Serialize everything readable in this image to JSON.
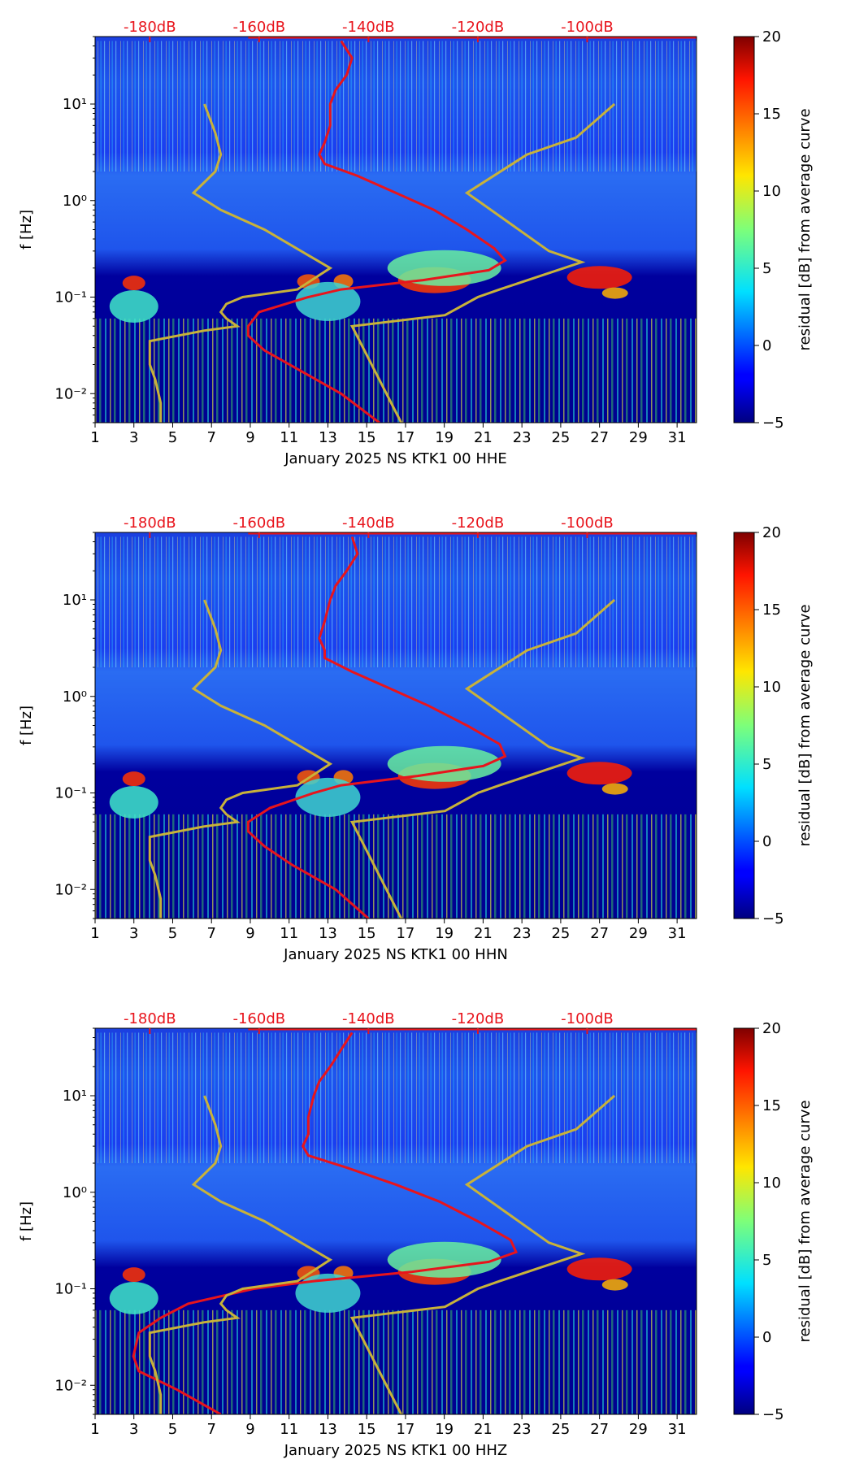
{
  "colors": {
    "psd_curve": "#e8141c",
    "nlnm_nhnm": "#c8b23a",
    "db_axis": "#e8141c",
    "axis": "#000000"
  },
  "colorbar_label": "residual [dB] from average curve",
  "colorbar_ticks": [
    "−5",
    "0",
    "5",
    "10",
    "15",
    "20"
  ],
  "y_label": "f [Hz]",
  "chart_data": [
    {
      "type": "heatmap",
      "title": "",
      "xlabel": "January 2025 NS KTK1 00 HHE",
      "ylabel": "f [Hz]",
      "x_ticks": [
        "1",
        "3",
        "5",
        "7",
        "9",
        "11",
        "13",
        "15",
        "17",
        "19",
        "21",
        "23",
        "25",
        "27",
        "29",
        "31"
      ],
      "x_range": [
        1,
        32
      ],
      "y_ticks": [
        "10⁻²",
        "10⁻¹",
        "10⁰",
        "10¹"
      ],
      "y_range_hz": [
        0.005,
        50
      ],
      "db_ticks": [
        "-180dB",
        "-160dB",
        "-140dB",
        "-120dB",
        "-100dB"
      ],
      "db_range": [
        -190,
        -80
      ],
      "colorbar_range": [
        -5,
        20
      ],
      "series": [
        {
          "name": "average PSD curve (red)",
          "points": [
            [
              -145,
              45
            ],
            [
              -143,
              30
            ],
            [
              -144,
              20
            ],
            [
              -146,
              14
            ],
            [
              -147,
              10
            ],
            [
              -147,
              6
            ],
            [
              -148,
              4
            ],
            [
              -149,
              3
            ],
            [
              -148,
              2.4
            ],
            [
              -142,
              1.8
            ],
            [
              -135,
              1.2
            ],
            [
              -128,
              0.8
            ],
            [
              -122,
              0.5
            ],
            [
              -117,
              0.32
            ],
            [
              -115,
              0.24
            ],
            [
              -118,
              0.19
            ],
            [
              -130,
              0.15
            ],
            [
              -145,
              0.12
            ],
            [
              -151,
              0.1
            ],
            [
              -160,
              0.07
            ],
            [
              -162,
              0.05
            ],
            [
              -162,
              0.04
            ],
            [
              -159,
              0.028
            ],
            [
              -153,
              0.018
            ],
            [
              -145,
              0.01
            ],
            [
              -138,
              0.005
            ]
          ]
        },
        {
          "name": "noise model curves (yellow)",
          "points": [
            [
              -178,
              0.005
            ],
            [
              -178,
              0.008
            ],
            [
              -179,
              0.014
            ],
            [
              -180,
              0.02
            ],
            [
              -180,
              0.035
            ],
            [
              -170,
              0.045
            ],
            [
              -164,
              0.05
            ],
            [
              -166,
              0.06
            ],
            [
              -167,
              0.07
            ],
            [
              -166,
              0.085
            ],
            [
              -163,
              0.1
            ],
            [
              -153,
              0.12
            ],
            [
              -147,
              0.2
            ],
            [
              -159,
              0.5
            ],
            [
              -167,
              0.8
            ],
            [
              -172,
              1.2
            ],
            [
              -168,
              2
            ],
            [
              -167,
              3
            ],
            [
              -168,
              5
            ],
            [
              -170,
              10
            ]
          ]
        },
        {
          "name": "noise model curves (yellow, high)",
          "points": [
            [
              -134,
              0.005
            ],
            [
              -143,
              0.05
            ],
            [
              -126,
              0.065
            ],
            [
              -120,
              0.1
            ],
            [
              -116,
              0.12
            ],
            [
              -101,
              0.23
            ],
            [
              -107,
              0.3
            ],
            [
              -122,
              1.2
            ],
            [
              -111,
              3
            ],
            [
              -102,
              4.5
            ],
            [
              -95,
              10
            ]
          ]
        }
      ]
    },
    {
      "type": "heatmap",
      "title": "",
      "xlabel": "January 2025 NS KTK1 00 HHN",
      "ylabel": "f [Hz]",
      "x_ticks": [
        "1",
        "3",
        "5",
        "7",
        "9",
        "11",
        "13",
        "15",
        "17",
        "19",
        "21",
        "23",
        "25",
        "27",
        "29",
        "31"
      ],
      "x_range": [
        1,
        32
      ],
      "y_ticks": [
        "10⁻²",
        "10⁻¹",
        "10⁰",
        "10¹"
      ],
      "y_range_hz": [
        0.005,
        50
      ],
      "db_ticks": [
        "-180dB",
        "-160dB",
        "-140dB",
        "-120dB",
        "-100dB"
      ],
      "db_range": [
        -190,
        -80
      ],
      "colorbar_range": [
        -5,
        20
      ],
      "series": [
        {
          "name": "average PSD curve (red)",
          "points": [
            [
              -143,
              45
            ],
            [
              -142,
              30
            ],
            [
              -144,
              20
            ],
            [
              -146,
              14
            ],
            [
              -147,
              10
            ],
            [
              -148,
              6
            ],
            [
              -149,
              4
            ],
            [
              -148,
              3
            ],
            [
              -148,
              2.5
            ],
            [
              -143,
              1.8
            ],
            [
              -136,
              1.2
            ],
            [
              -129,
              0.8
            ],
            [
              -122,
              0.5
            ],
            [
              -116,
              0.32
            ],
            [
              -115,
              0.24
            ],
            [
              -119,
              0.19
            ],
            [
              -131,
              0.15
            ],
            [
              -145,
              0.12
            ],
            [
              -150,
              0.1
            ],
            [
              -158,
              0.07
            ],
            [
              -162,
              0.05
            ],
            [
              -162,
              0.04
            ],
            [
              -159,
              0.028
            ],
            [
              -154,
              0.018
            ],
            [
              -146,
              0.01
            ],
            [
              -140,
              0.005
            ]
          ]
        },
        {
          "name": "noise model curves (yellow)",
          "points": [
            [
              -178,
              0.005
            ],
            [
              -178,
              0.008
            ],
            [
              -179,
              0.014
            ],
            [
              -180,
              0.02
            ],
            [
              -180,
              0.035
            ],
            [
              -170,
              0.045
            ],
            [
              -164,
              0.05
            ],
            [
              -166,
              0.06
            ],
            [
              -167,
              0.07
            ],
            [
              -166,
              0.085
            ],
            [
              -163,
              0.1
            ],
            [
              -153,
              0.12
            ],
            [
              -147,
              0.2
            ],
            [
              -159,
              0.5
            ],
            [
              -167,
              0.8
            ],
            [
              -172,
              1.2
            ],
            [
              -168,
              2
            ],
            [
              -167,
              3
            ],
            [
              -168,
              5
            ],
            [
              -170,
              10
            ]
          ]
        },
        {
          "name": "noise model curves (yellow, high)",
          "points": [
            [
              -134,
              0.005
            ],
            [
              -143,
              0.05
            ],
            [
              -126,
              0.065
            ],
            [
              -120,
              0.1
            ],
            [
              -116,
              0.12
            ],
            [
              -101,
              0.23
            ],
            [
              -107,
              0.3
            ],
            [
              -122,
              1.2
            ],
            [
              -111,
              3
            ],
            [
              -102,
              4.5
            ],
            [
              -95,
              10
            ]
          ]
        }
      ]
    },
    {
      "type": "heatmap",
      "title": "",
      "xlabel": "January 2025 NS KTK1 00 HHZ",
      "ylabel": "f [Hz]",
      "x_ticks": [
        "1",
        "3",
        "5",
        "7",
        "9",
        "11",
        "13",
        "15",
        "17",
        "19",
        "21",
        "23",
        "25",
        "27",
        "29",
        "31"
      ],
      "x_range": [
        1,
        32
      ],
      "y_ticks": [
        "10⁻²",
        "10⁻¹",
        "10⁰",
        "10¹"
      ],
      "y_range_hz": [
        0.005,
        50
      ],
      "db_ticks": [
        "-180dB",
        "-160dB",
        "-140dB",
        "-120dB",
        "-100dB"
      ],
      "db_range": [
        -190,
        -80
      ],
      "colorbar_range": [
        -5,
        20
      ],
      "series": [
        {
          "name": "average PSD curve (red)",
          "points": [
            [
              -143,
              45
            ],
            [
              -145,
              30
            ],
            [
              -147,
              20
            ],
            [
              -149,
              14
            ],
            [
              -150,
              10
            ],
            [
              -151,
              6
            ],
            [
              -151,
              4
            ],
            [
              -152,
              3
            ],
            [
              -151,
              2.4
            ],
            [
              -144,
              1.8
            ],
            [
              -135,
              1.2
            ],
            [
              -127,
              0.8
            ],
            [
              -120,
              0.5
            ],
            [
              -114,
              0.32
            ],
            [
              -113,
              0.24
            ],
            [
              -118,
              0.19
            ],
            [
              -132,
              0.15
            ],
            [
              -150,
              0.12
            ],
            [
              -161,
              0.1
            ],
            [
              -173,
              0.07
            ],
            [
              -178,
              0.05
            ],
            [
              -182,
              0.035
            ],
            [
              -183,
              0.02
            ],
            [
              -182,
              0.014
            ],
            [
              -175,
              0.009
            ],
            [
              -167,
              0.005
            ]
          ]
        },
        {
          "name": "noise model curves (yellow)",
          "points": [
            [
              -178,
              0.005
            ],
            [
              -178,
              0.008
            ],
            [
              -179,
              0.014
            ],
            [
              -180,
              0.02
            ],
            [
              -180,
              0.035
            ],
            [
              -170,
              0.045
            ],
            [
              -164,
              0.05
            ],
            [
              -166,
              0.06
            ],
            [
              -167,
              0.07
            ],
            [
              -166,
              0.085
            ],
            [
              -163,
              0.1
            ],
            [
              -153,
              0.12
            ],
            [
              -147,
              0.2
            ],
            [
              -159,
              0.5
            ],
            [
              -167,
              0.8
            ],
            [
              -172,
              1.2
            ],
            [
              -168,
              2
            ],
            [
              -167,
              3
            ],
            [
              -168,
              5
            ],
            [
              -170,
              10
            ]
          ]
        },
        {
          "name": "noise model curves (yellow, high)",
          "points": [
            [
              -134,
              0.005
            ],
            [
              -143,
              0.05
            ],
            [
              -126,
              0.065
            ],
            [
              -120,
              0.1
            ],
            [
              -116,
              0.12
            ],
            [
              -101,
              0.23
            ],
            [
              -107,
              0.3
            ],
            [
              -122,
              1.2
            ],
            [
              -111,
              3
            ],
            [
              -102,
              4.5
            ],
            [
              -95,
              10
            ]
          ]
        }
      ]
    }
  ]
}
